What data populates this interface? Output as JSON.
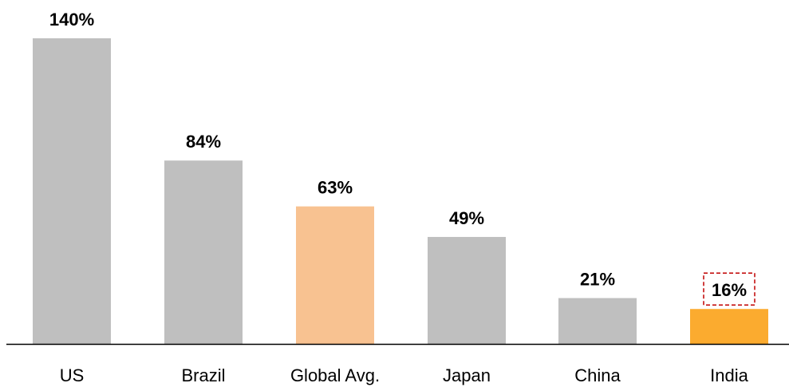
{
  "chart_data": {
    "type": "bar",
    "categories": [
      "US",
      "Brazil",
      "Global Avg.",
      "Japan",
      "China",
      "India"
    ],
    "values": [
      140,
      84,
      63,
      49,
      21,
      16
    ],
    "value_labels": [
      "140%",
      "84%",
      "63%",
      "49%",
      "21%",
      "16%"
    ],
    "title": "",
    "xlabel": "",
    "ylabel": "",
    "ylim": [
      0,
      140
    ],
    "grid": false,
    "legend": "none",
    "highlighted_label": "India",
    "colors": {
      "default": "#bfbfbf",
      "Global Avg.": "#f8c291",
      "India": "#fbab2f",
      "highlight_box": "#c00000",
      "axis": "#000000"
    }
  }
}
